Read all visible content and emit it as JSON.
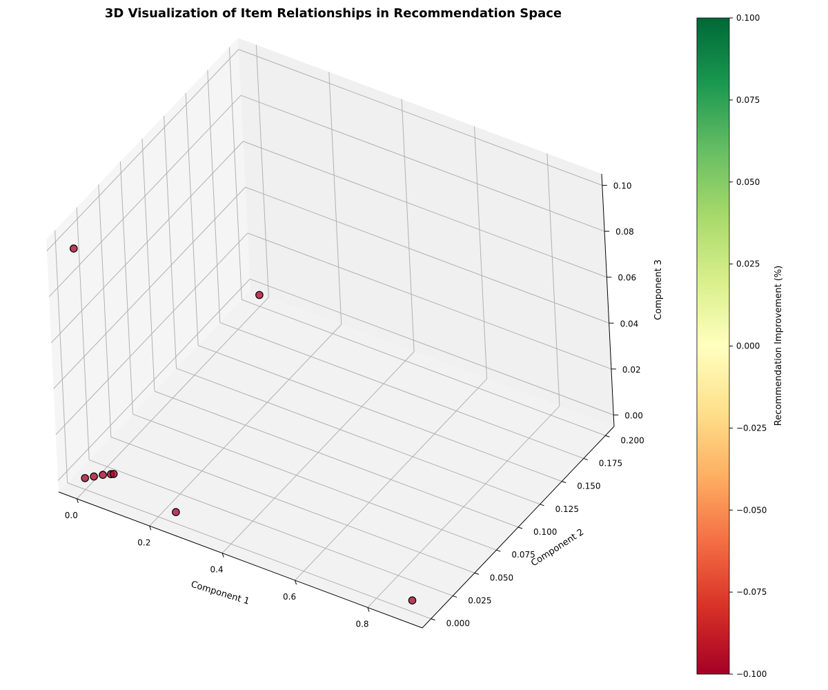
{
  "chart_data": {
    "type": "scatter",
    "projection": "3d",
    "title": "3D Visualization of Item Relationships in Recommendation Space",
    "xlabel": "Component 1",
    "ylabel": "Component 2",
    "zlabel": "Component 3",
    "xlim": [
      -0.05,
      0.95
    ],
    "ylim": [
      -0.01,
      0.21
    ],
    "zlim": [
      -0.005,
      0.105
    ],
    "xticks": [
      "0.0",
      "0.2",
      "0.4",
      "0.6",
      "0.8"
    ],
    "yticks": [
      "0.000",
      "0.025",
      "0.050",
      "0.075",
      "0.100",
      "0.125",
      "0.150",
      "0.175",
      "0.200"
    ],
    "zticks": [
      "0.00",
      "0.02",
      "0.04",
      "0.06",
      "0.08",
      "0.10"
    ],
    "grid": true,
    "colormap": "RdYlGn",
    "colorbar": {
      "label": "Recommendation Improvement (%)",
      "range": [
        -0.1,
        0.1
      ],
      "ticks": [
        "−0.100",
        "−0.075",
        "−0.050",
        "−0.025",
        "0.000",
        "0.025",
        "0.050",
        "0.075",
        "0.100"
      ]
    },
    "points": [
      {
        "x": 0.0,
        "y": 0.0,
        "z": 0.1,
        "value": -0.1
      },
      {
        "x": 0.0,
        "y": 0.0,
        "z": 0.0,
        "value": -0.1
      },
      {
        "x": 0.015,
        "y": 0.004,
        "z": 0.0,
        "value": -0.1
      },
      {
        "x": 0.03,
        "y": 0.008,
        "z": 0.0,
        "value": -0.1
      },
      {
        "x": 0.045,
        "y": 0.011,
        "z": 0.0,
        "value": -0.1
      },
      {
        "x": 0.05,
        "y": 0.012,
        "z": 0.0,
        "value": -0.1
      },
      {
        "x": 0.25,
        "y": 0.0,
        "z": 0.0,
        "value": -0.1
      },
      {
        "x": 0.9,
        "y": 0.0,
        "z": 0.0,
        "value": -0.1
      },
      {
        "x": 0.0,
        "y": 0.2,
        "z": 0.0,
        "value": -0.1
      }
    ],
    "colors": {
      "marker": "#a50026",
      "marker_edge": "#000000",
      "grid": "#b0b0b0"
    }
  }
}
